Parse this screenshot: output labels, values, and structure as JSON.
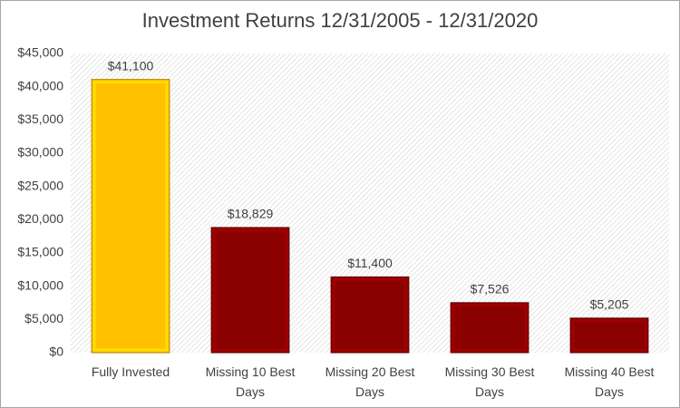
{
  "chart_data": {
    "type": "bar",
    "title": "Investment Returns 12/31/2005 - 12/31/2020",
    "categories": [
      "Fully Invested",
      "Missing 10 Best Days",
      "Missing 20 Best Days",
      "Missing 30 Best Days",
      "Missing 40 Best Days"
    ],
    "values": [
      41100,
      18829,
      11400,
      7526,
      5205
    ],
    "value_labels": [
      "$41,100",
      "$18,829",
      "$11,400",
      "$7,526",
      "$5,205"
    ],
    "colors": [
      "#ffc000",
      "#8b0000",
      "#8b0000",
      "#8b0000",
      "#8b0000"
    ],
    "ylim": [
      0,
      45000
    ],
    "yticks": [
      {
        "value": 0,
        "label": "$0"
      },
      {
        "value": 5000,
        "label": "$5,000"
      },
      {
        "value": 10000,
        "label": "$10,000"
      },
      {
        "value": 15000,
        "label": "$15,000"
      },
      {
        "value": 20000,
        "label": "$20,000"
      },
      {
        "value": 25000,
        "label": "$25,000"
      },
      {
        "value": 30000,
        "label": "$30,000"
      },
      {
        "value": 35000,
        "label": "$35,000"
      },
      {
        "value": 40000,
        "label": "$40,000"
      },
      {
        "value": 45000,
        "label": "$45,000"
      }
    ],
    "grid": false
  }
}
